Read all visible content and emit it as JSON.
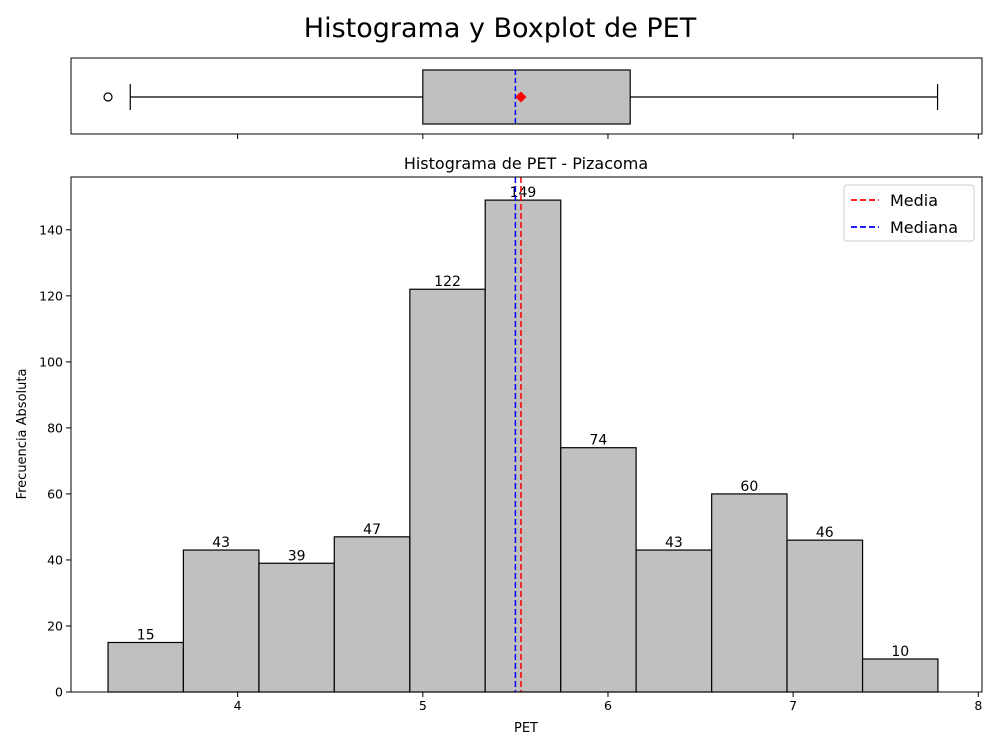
{
  "figure": {
    "suptitle": "Histograma y Boxplot de PET"
  },
  "chart_data": [
    {
      "type": "box",
      "variable": "PET",
      "min_whisker": 3.42,
      "q1": 5.0,
      "median": 5.5,
      "mean": 5.53,
      "q3": 6.12,
      "max_whisker": 7.78,
      "outliers": [
        3.3
      ],
      "xlim": [
        3.1,
        8.02
      ],
      "colors": {
        "box": "#c0c0c0",
        "median_line": "#0000ff",
        "mean_marker": "#ff0000"
      }
    },
    {
      "type": "bar",
      "title": "Histograma de PET - Pizacoma",
      "xlabel": "PET",
      "ylabel": "Frecuencia Absoluta",
      "bin_edges": [
        3.3,
        3.707,
        4.115,
        4.522,
        4.93,
        5.337,
        5.745,
        6.152,
        6.56,
        6.967,
        7.375,
        7.782
      ],
      "values": [
        15,
        43,
        39,
        47,
        122,
        149,
        74,
        43,
        60,
        46,
        10
      ],
      "xlim": [
        3.1,
        8.02
      ],
      "ylim": [
        0,
        156
      ],
      "xticks": [
        4,
        5,
        6,
        7,
        8
      ],
      "yticks": [
        0,
        20,
        40,
        60,
        80,
        100,
        120,
        140
      ],
      "mean": 5.53,
      "median": 5.5,
      "legend": {
        "placement": "top-right",
        "entries": [
          {
            "label": "Media",
            "color": "#ff0000"
          },
          {
            "label": "Mediana",
            "color": "#0000ff"
          }
        ]
      },
      "bar_color": "#c0c0c0"
    }
  ]
}
